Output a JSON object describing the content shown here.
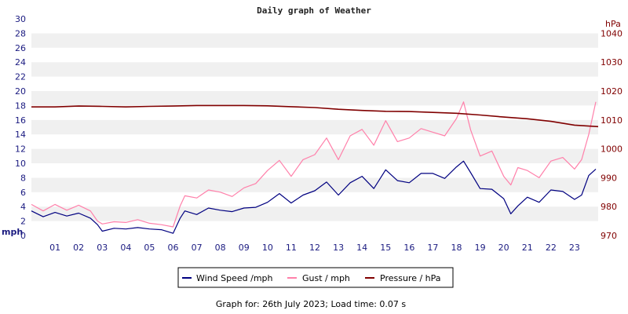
{
  "chart_data": {
    "type": "line",
    "title": "Daily graph of Weather",
    "left_axis": {
      "unit_label": "mph",
      "ylim": [
        0,
        30
      ],
      "ticks": [
        "0",
        "2",
        "4",
        "6",
        "8",
        "10",
        "12",
        "14",
        "16",
        "18",
        "20",
        "22",
        "24",
        "26",
        "28",
        "30"
      ]
    },
    "right_axis": {
      "unit_label": "hPa",
      "ylim": [
        970,
        1045
      ],
      "ticks": [
        "970",
        "980",
        "990",
        "1000",
        "1010",
        "1020",
        "1030",
        "1040"
      ]
    },
    "x_axis": {
      "xlim": [
        0,
        24
      ],
      "ticks": [
        "01",
        "02",
        "03",
        "04",
        "05",
        "06",
        "07",
        "08",
        "09",
        "10",
        "11",
        "12",
        "13",
        "14",
        "15",
        "16",
        "17",
        "18",
        "19",
        "20",
        "21",
        "22",
        "23"
      ]
    },
    "grid": "horizontal alternating bands",
    "legend_position": "bottom-center",
    "series": [
      {
        "name": "Wind Speed /mph",
        "axis": "left",
        "color": "#000080",
        "x": [
          0,
          0.5,
          1,
          1.5,
          2,
          2.5,
          2.8,
          3,
          3.5,
          4,
          4.5,
          5,
          5.5,
          6,
          6.3,
          6.5,
          7,
          7.5,
          8,
          8.5,
          9,
          9.5,
          10,
          10.5,
          11,
          11.5,
          12,
          12.5,
          13,
          13.5,
          14,
          14.5,
          15,
          15.5,
          16,
          16.5,
          17,
          17.5,
          18,
          18.3,
          18.6,
          19,
          19.5,
          20,
          20.3,
          20.6,
          21,
          21.5,
          22,
          22.5,
          23,
          23.3,
          23.6,
          23.9
        ],
        "y": [
          3.4,
          2.6,
          3.2,
          2.7,
          3.1,
          2.4,
          1.5,
          0.6,
          1.0,
          0.9,
          1.1,
          0.9,
          0.8,
          0.3,
          2.4,
          3.4,
          2.9,
          3.8,
          3.5,
          3.3,
          3.8,
          3.9,
          4.6,
          5.8,
          4.5,
          5.6,
          6.2,
          7.4,
          5.6,
          7.3,
          8.2,
          6.5,
          9.1,
          7.6,
          7.3,
          8.6,
          8.6,
          7.9,
          9.5,
          10.3,
          8.7,
          6.5,
          6.4,
          5.1,
          3.0,
          4.1,
          5.3,
          4.6,
          6.3,
          6.1,
          5.0,
          5.6,
          8.3,
          9.2
        ]
      },
      {
        "name": "Gust / mph",
        "axis": "left",
        "color": "#ff80aa",
        "x": [
          0,
          0.5,
          1,
          1.5,
          2,
          2.5,
          2.8,
          3,
          3.5,
          4,
          4.5,
          5,
          5.5,
          6,
          6.3,
          6.5,
          7,
          7.5,
          8,
          8.5,
          9,
          9.5,
          10,
          10.5,
          11,
          11.5,
          12,
          12.5,
          13,
          13.5,
          14,
          14.5,
          15,
          15.5,
          16,
          16.5,
          17,
          17.5,
          18,
          18.3,
          18.6,
          19,
          19.5,
          20,
          20.3,
          20.6,
          21,
          21.5,
          22,
          22.5,
          23,
          23.3,
          23.6,
          23.9
        ],
        "y": [
          4.3,
          3.4,
          4.3,
          3.5,
          4.2,
          3.4,
          2.0,
          1.6,
          1.9,
          1.8,
          2.2,
          1.7,
          1.5,
          1.2,
          4.1,
          5.5,
          5.2,
          6.3,
          6.0,
          5.4,
          6.6,
          7.2,
          9.0,
          10.4,
          8.2,
          10.5,
          11.2,
          13.5,
          10.5,
          13.8,
          14.7,
          12.5,
          15.9,
          13.0,
          13.5,
          14.8,
          14.3,
          13.8,
          16.2,
          18.5,
          14.6,
          11.0,
          11.7,
          8.2,
          7.0,
          9.4,
          9.0,
          8.0,
          10.3,
          10.8,
          9.2,
          10.5,
          14.0,
          18.5
        ]
      },
      {
        "name": "Pressure / hPa",
        "axis": "right",
        "color": "#800000",
        "x": [
          0,
          1,
          2,
          3,
          4,
          5,
          6,
          7,
          8,
          9,
          10,
          11,
          12,
          13,
          14,
          15,
          16,
          17,
          18,
          19,
          20,
          21,
          22,
          23,
          24
        ],
        "y": [
          1014.5,
          1014.5,
          1014.8,
          1014.7,
          1014.5,
          1014.7,
          1014.8,
          1015.0,
          1015.0,
          1015.0,
          1014.9,
          1014.6,
          1014.3,
          1013.7,
          1013.3,
          1013.0,
          1012.9,
          1012.6,
          1012.3,
          1011.7,
          1011.0,
          1010.4,
          1009.5,
          1008.2,
          1007.7
        ]
      }
    ]
  },
  "footer": {
    "text": "Graph for: 26th July 2023; Load time: 0.07 s"
  }
}
